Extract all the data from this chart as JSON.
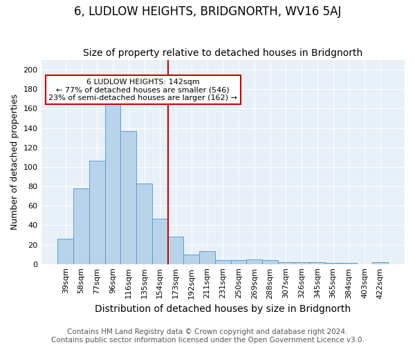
{
  "title": "6, LUDLOW HEIGHTS, BRIDGNORTH, WV16 5AJ",
  "subtitle": "Size of property relative to detached houses in Bridgnorth",
  "xlabel": "Distribution of detached houses by size in Bridgnorth",
  "ylabel": "Number of detached properties",
  "categories": [
    "39sqm",
    "58sqm",
    "77sqm",
    "96sqm",
    "116sqm",
    "135sqm",
    "154sqm",
    "173sqm",
    "192sqm",
    "211sqm",
    "231sqm",
    "250sqm",
    "269sqm",
    "288sqm",
    "307sqm",
    "326sqm",
    "345sqm",
    "365sqm",
    "384sqm",
    "403sqm",
    "422sqm"
  ],
  "values": [
    26,
    78,
    106,
    165,
    137,
    83,
    47,
    28,
    10,
    13,
    4,
    4,
    5,
    4,
    2,
    2,
    2,
    1,
    1,
    0,
    2
  ],
  "bar_color": "#b8d4ea",
  "bar_edge_color": "#5a9fd4",
  "vline_x": 6.5,
  "vline_color": "#cc0000",
  "annotation_text": "6 LUDLOW HEIGHTS: 142sqm\n← 77% of detached houses are smaller (546)\n23% of semi-detached houses are larger (162) →",
  "annotation_box_color": "#ffffff",
  "annotation_box_edge": "#cc0000",
  "ylim": [
    0,
    210
  ],
  "yticks": [
    0,
    20,
    40,
    60,
    80,
    100,
    120,
    140,
    160,
    180,
    200
  ],
  "footer_line1": "Contains HM Land Registry data © Crown copyright and database right 2024.",
  "footer_line2": "Contains public sector information licensed under the Open Government Licence v3.0.",
  "bg_color": "#e8f0f8",
  "title_fontsize": 12,
  "subtitle_fontsize": 10,
  "xlabel_fontsize": 10,
  "ylabel_fontsize": 9,
  "footer_fontsize": 7.5,
  "tick_fontsize": 8
}
